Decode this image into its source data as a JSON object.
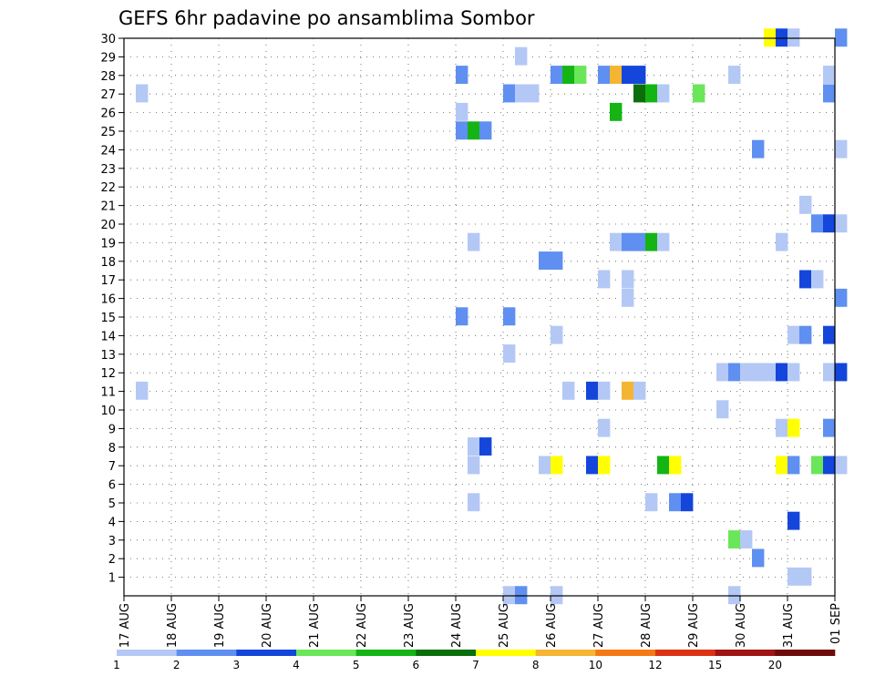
{
  "chart_data": {
    "type": "heatmap",
    "title": "GEFS 6hr padavine po ansamblima Sombor",
    "x_tick_labels": [
      "17 AUG",
      "18 AUG",
      "19 AUG",
      "20 AUG",
      "21 AUG",
      "22 AUG",
      "23 AUG",
      "24 AUG",
      "25 AUG",
      "26 AUG",
      "27 AUG",
      "28 AUG",
      "29 AUG",
      "30 AUG",
      "31 AUG",
      "01 SEP"
    ],
    "y_tick_labels": [
      "1",
      "2",
      "3",
      "4",
      "5",
      "6",
      "7",
      "8",
      "9",
      "10",
      "11",
      "12",
      "13",
      "14",
      "15",
      "16",
      "17",
      "18",
      "19",
      "20",
      "21",
      "22",
      "23",
      "24",
      "25",
      "26",
      "27",
      "28",
      "29",
      "30"
    ],
    "x_range_days": [
      0,
      15
    ],
    "y_range": [
      0,
      30
    ],
    "grid": true,
    "legend_position": "bottom",
    "colorbar": {
      "labels": [
        "1",
        "2",
        "3",
        "4",
        "5",
        "6",
        "7",
        "8",
        "10",
        "12",
        "15",
        "20"
      ],
      "colors": [
        "#b4c8f5",
        "#5f8ff0",
        "#1446dc",
        "#6ae65a",
        "#14b414",
        "#0a6e0a",
        "#ffff00",
        "#f5b432",
        "#f57814",
        "#dc3214",
        "#a01414",
        "#6e0a0a"
      ]
    },
    "cells": [
      [
        13.5,
        30,
        7
      ],
      [
        13.75,
        30,
        3
      ],
      [
        14,
        30,
        1
      ],
      [
        15,
        30,
        2
      ],
      [
        8.25,
        29,
        1
      ],
      [
        7,
        28,
        2
      ],
      [
        9,
        28,
        2
      ],
      [
        9.25,
        28,
        5
      ],
      [
        9.5,
        28,
        4
      ],
      [
        10,
        28,
        2
      ],
      [
        10.25,
        28,
        8
      ],
      [
        10.5,
        28,
        3
      ],
      [
        10.75,
        28,
        3
      ],
      [
        12.75,
        28,
        1
      ],
      [
        14.75,
        28,
        1
      ],
      [
        0.25,
        27,
        1
      ],
      [
        8,
        27,
        2
      ],
      [
        8.25,
        27,
        1
      ],
      [
        8.5,
        27,
        1
      ],
      [
        10.75,
        27,
        6
      ],
      [
        11,
        27,
        5
      ],
      [
        11.25,
        27,
        1
      ],
      [
        12,
        27,
        4
      ],
      [
        14.75,
        27,
        2
      ],
      [
        7,
        26,
        1
      ],
      [
        10.25,
        26,
        5
      ],
      [
        7,
        25,
        2
      ],
      [
        7.25,
        25,
        5
      ],
      [
        7.5,
        25,
        2
      ],
      [
        13.25,
        24,
        2
      ],
      [
        15,
        24,
        1
      ],
      [
        14.25,
        21,
        1
      ],
      [
        14.5,
        20,
        2
      ],
      [
        14.75,
        20,
        3
      ],
      [
        15,
        20,
        1
      ],
      [
        7.25,
        19,
        1
      ],
      [
        10.25,
        19,
        1
      ],
      [
        10.5,
        19,
        2
      ],
      [
        10.75,
        19,
        2
      ],
      [
        11,
        19,
        5
      ],
      [
        11.25,
        19,
        1
      ],
      [
        13.75,
        19,
        1
      ],
      [
        8.75,
        18,
        2
      ],
      [
        9,
        18,
        2
      ],
      [
        10,
        17,
        1
      ],
      [
        10.5,
        17,
        1
      ],
      [
        14.25,
        17,
        3
      ],
      [
        14.5,
        17,
        1
      ],
      [
        10.5,
        16,
        1
      ],
      [
        15,
        16,
        2
      ],
      [
        7,
        15,
        2
      ],
      [
        8,
        15,
        2
      ],
      [
        14,
        14,
        1
      ],
      [
        14.25,
        14,
        2
      ],
      [
        14.75,
        14,
        3
      ],
      [
        9,
        14,
        1
      ],
      [
        8,
        13,
        1
      ],
      [
        12.5,
        12,
        1
      ],
      [
        12.75,
        12,
        2
      ],
      [
        13,
        12,
        1
      ],
      [
        13.25,
        12,
        1
      ],
      [
        13.5,
        12,
        1
      ],
      [
        13.75,
        12,
        3
      ],
      [
        14,
        12,
        1
      ],
      [
        14.75,
        12,
        1
      ],
      [
        15,
        12,
        3
      ],
      [
        0.25,
        11,
        1
      ],
      [
        9.25,
        11,
        1
      ],
      [
        9.75,
        11,
        3
      ],
      [
        10,
        11,
        1
      ],
      [
        10.5,
        11,
        8
      ],
      [
        10.75,
        11,
        1
      ],
      [
        12.5,
        10,
        1
      ],
      [
        10,
        9,
        1
      ],
      [
        13.75,
        9,
        1
      ],
      [
        14,
        9,
        7
      ],
      [
        14.75,
        9,
        2
      ],
      [
        7.25,
        8,
        1
      ],
      [
        7.5,
        8,
        3
      ],
      [
        7.25,
        7,
        1
      ],
      [
        8.75,
        7,
        1
      ],
      [
        9,
        7,
        7
      ],
      [
        9.75,
        7,
        3
      ],
      [
        10,
        7,
        7
      ],
      [
        11.25,
        7,
        5
      ],
      [
        11.5,
        7,
        7
      ],
      [
        13.75,
        7,
        7
      ],
      [
        14,
        7,
        2
      ],
      [
        14.5,
        7,
        4
      ],
      [
        14.75,
        7,
        3
      ],
      [
        15,
        7,
        1
      ],
      [
        7.25,
        5,
        1
      ],
      [
        11,
        5,
        1
      ],
      [
        11.5,
        5,
        2
      ],
      [
        11.75,
        5,
        3
      ],
      [
        14,
        4,
        3
      ],
      [
        12.75,
        3,
        4
      ],
      [
        13,
        3,
        1
      ],
      [
        13.25,
        2,
        2
      ],
      [
        14,
        1,
        1
      ],
      [
        14.25,
        1,
        1
      ],
      [
        8,
        0,
        1
      ],
      [
        8.25,
        0,
        2
      ],
      [
        9,
        0,
        1
      ],
      [
        12.75,
        0,
        1
      ]
    ]
  }
}
